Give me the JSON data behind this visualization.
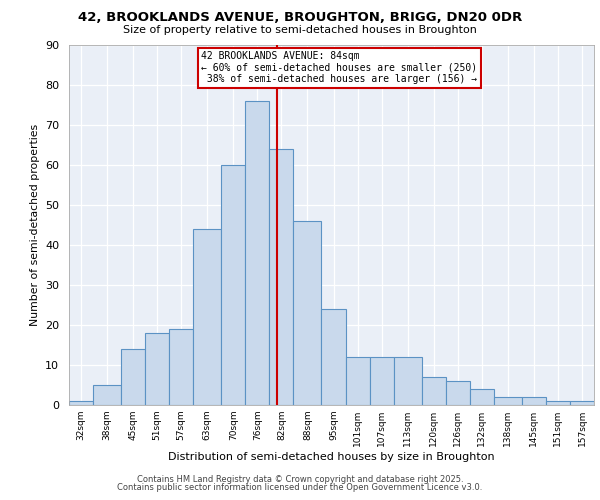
{
  "title_line1": "42, BROOKLANDS AVENUE, BROUGHTON, BRIGG, DN20 0DR",
  "title_line2": "Size of property relative to semi-detached houses in Broughton",
  "xlabel": "Distribution of semi-detached houses by size in Broughton",
  "ylabel": "Number of semi-detached properties",
  "bin_labels": [
    "32sqm",
    "38sqm",
    "45sqm",
    "51sqm",
    "57sqm",
    "63sqm",
    "70sqm",
    "76sqm",
    "82sqm",
    "88sqm",
    "95sqm",
    "101sqm",
    "107sqm",
    "113sqm",
    "120sqm",
    "126sqm",
    "132sqm",
    "138sqm",
    "145sqm",
    "151sqm",
    "157sqm"
  ],
  "bin_edges": [
    32,
    38,
    45,
    51,
    57,
    63,
    70,
    76,
    82,
    88,
    95,
    101,
    107,
    113,
    120,
    126,
    132,
    138,
    145,
    151,
    157,
    163
  ],
  "counts": [
    1,
    5,
    14,
    18,
    19,
    44,
    60,
    76,
    64,
    46,
    24,
    12,
    12,
    12,
    7,
    6,
    4,
    2,
    2,
    1,
    1
  ],
  "bar_color": "#c9d9ec",
  "bar_edge_color": "#5b92c4",
  "property_size": 84,
  "red_line_color": "#cc0000",
  "annotation_text": "42 BROOKLANDS AVENUE: 84sqm\n← 60% of semi-detached houses are smaller (250)\n 38% of semi-detached houses are larger (156) →",
  "annotation_box_color": "#ffffff",
  "annotation_box_edge": "#cc0000",
  "ylim": [
    0,
    90
  ],
  "yticks": [
    0,
    10,
    20,
    30,
    40,
    50,
    60,
    70,
    80,
    90
  ],
  "background_color": "#eaeff7",
  "grid_color": "#ffffff",
  "footer_line1": "Contains HM Land Registry data © Crown copyright and database right 2025.",
  "footer_line2": "Contains public sector information licensed under the Open Government Licence v3.0."
}
